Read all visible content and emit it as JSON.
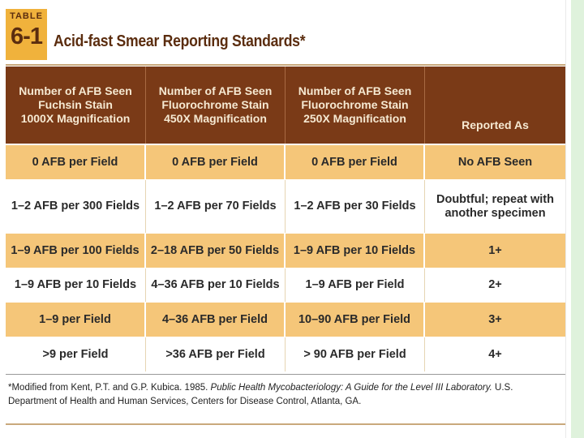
{
  "badge": {
    "word": "TABLE",
    "number": "6-1"
  },
  "title": "Acid-fast Smear Reporting Standards*",
  "columns": [
    {
      "lines": [
        "Number of AFB Seen",
        "Fuchsin Stain",
        "1000X Magnification"
      ]
    },
    {
      "lines": [
        "Number of AFB Seen",
        "Fluorochrome Stain",
        "450X Magnification"
      ]
    },
    {
      "lines": [
        "Number of AFB Seen",
        "Fluorochrome Stain",
        "250X Magnification"
      ]
    },
    {
      "lines": [
        "Reported As"
      ]
    }
  ],
  "rows": [
    [
      "0 AFB per Field",
      "0 AFB per Field",
      "0 AFB per Field",
      "No AFB Seen"
    ],
    [
      "1–2 AFB per 300 Fields",
      "1–2 AFB per 70 Fields",
      "1–2 AFB per 30 Fields",
      "Doubtful; repeat with another specimen"
    ],
    [
      "1–9 AFB per 100 Fields",
      "2–18 AFB per 50 Fields",
      "1–9 AFB per 10 Fields",
      "1+"
    ],
    [
      "1–9 AFB per 10 Fields",
      "4–36 AFB per 10 Fields",
      "1–9 AFB per Field",
      "2+"
    ],
    [
      "1–9 per Field",
      "4–36 AFB per Field",
      "10–90 AFB per Field",
      "3+"
    ],
    [
      ">9 per Field",
      ">36 AFB per Field",
      "> 90 AFB per Field",
      "4+"
    ]
  ],
  "footnote": {
    "before": "*Modified from Kent, P.T. and G.P. Kubica. 1985. ",
    "italic": "Public Health Mycobacteriology: A Guide for the Level III Laboratory.",
    "after": " U.S. Department of Health and Human Services, Centers for Disease Control, Atlanta, GA."
  },
  "colors": {
    "header_bg": "#7a3a17",
    "shaded_row": "#f5c679",
    "badge_bg": "#f0b23c",
    "side_strip": "#dff2dc"
  }
}
